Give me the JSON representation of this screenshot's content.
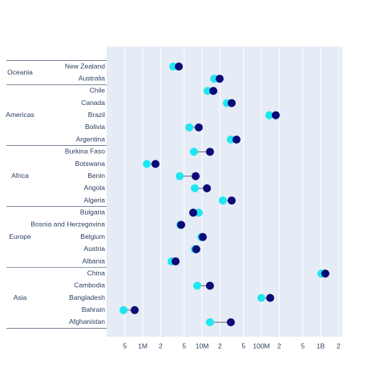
{
  "chart_data": {
    "type": "dumbbell",
    "groups": [
      {
        "name": "Oceania",
        "categories": [
          "New Zealand",
          "Australia"
        ]
      },
      {
        "name": "Americas",
        "categories": [
          "Chile",
          "Canada",
          "Brazil",
          "Bolivia",
          "Argentina"
        ]
      },
      {
        "name": "Africa",
        "categories": [
          "Burkina Faso",
          "Botswana",
          "Benin",
          "Angola",
          "Algeria"
        ]
      },
      {
        "name": "Europe",
        "categories": [
          "Bulgaria",
          "Bosnia and Herzegovina",
          "Belgium",
          "Austria",
          "Albania"
        ]
      },
      {
        "name": "Asia",
        "categories": [
          "China",
          "Cambodia",
          "Bangladesh",
          "Bahrain",
          "Afghanistan"
        ]
      }
    ],
    "series": [
      {
        "color": "#1ee6f0",
        "values": [
          3260000,
          16000000,
          12400000,
          26200000,
          136000000,
          6100000,
          30600000,
          7300000,
          1170000,
          4200000,
          7550000,
          22400000,
          8800000,
          4300000,
          9700000,
          7550000,
          3060000,
          1030000000,
          8300000,
          100000000,
          474000,
          13600000
        ]
      },
      {
        "color": "#0a0a78",
        "values": [
          4060000,
          19800000,
          15500000,
          31600000,
          175000000,
          8800000,
          38100000,
          13600000,
          1640000,
          7800000,
          12100000,
          31600000,
          7100000,
          4450000,
          10300000,
          8000000,
          3580000,
          1200000000,
          13600000,
          141000000,
          732000,
          30600000
        ]
      }
    ],
    "xscale": "log",
    "xlim": [
      246000,
      2320000000
    ],
    "xticks": [
      {
        "value": 500000,
        "label": "5"
      },
      {
        "value": 1000000,
        "label": "1M"
      },
      {
        "value": 2000000,
        "label": "2"
      },
      {
        "value": 5000000,
        "label": "5"
      },
      {
        "value": 10000000,
        "label": "10M"
      },
      {
        "value": 20000000,
        "label": "2"
      },
      {
        "value": 50000000,
        "label": "5"
      },
      {
        "value": 100000000,
        "label": "100M"
      },
      {
        "value": 200000000,
        "label": "2"
      },
      {
        "value": 500000000,
        "label": "5"
      },
      {
        "value": 1000000000,
        "label": "1B"
      },
      {
        "value": 2000000000,
        "label": "2"
      }
    ],
    "grid": true
  }
}
